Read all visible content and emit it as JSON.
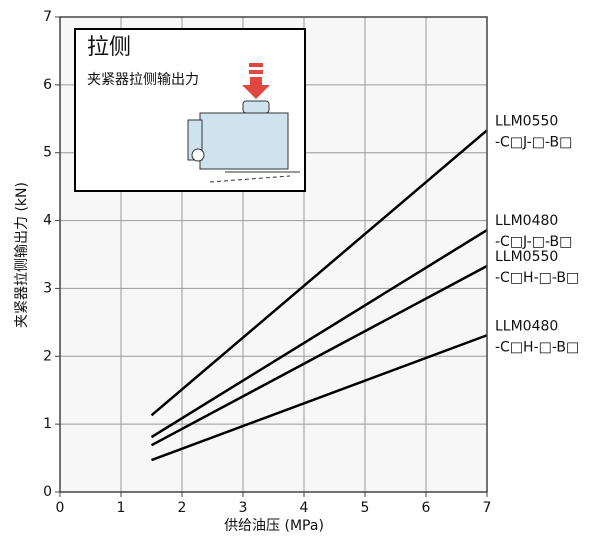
{
  "chart_data": {
    "type": "line",
    "x_label": "供给油压 (MPa)",
    "y_label": "夹紧器拉侧输出力 (kN)",
    "x": [
      1.5,
      7
    ],
    "series": [
      {
        "name": "LLM0550",
        "variant": "-C□J-□-B□",
        "color": "#000000",
        "values": [
          1.13,
          5.33
        ]
      },
      {
        "name": "LLM0480",
        "variant": "-C□J-□-B□",
        "color": "#000000",
        "values": [
          0.81,
          3.86
        ]
      },
      {
        "name": "LLM0550",
        "variant": "-C□H-□-B□",
        "color": "#000000",
        "values": [
          0.69,
          3.33
        ]
      },
      {
        "name": "LLM0480",
        "variant": "-C□H-□-B□",
        "color": "#000000",
        "values": [
          0.47,
          2.31
        ]
      }
    ],
    "xlim": [
      0,
      7
    ],
    "xticks": [
      0,
      1,
      2,
      3,
      4,
      5,
      6,
      7
    ],
    "ylim": [
      0,
      7
    ],
    "yticks": [
      0,
      1,
      2,
      3,
      4,
      5,
      6,
      7
    ],
    "grid": true,
    "inset": {
      "title": "拉侧",
      "text": "夹紧器拉侧输出力"
    }
  }
}
